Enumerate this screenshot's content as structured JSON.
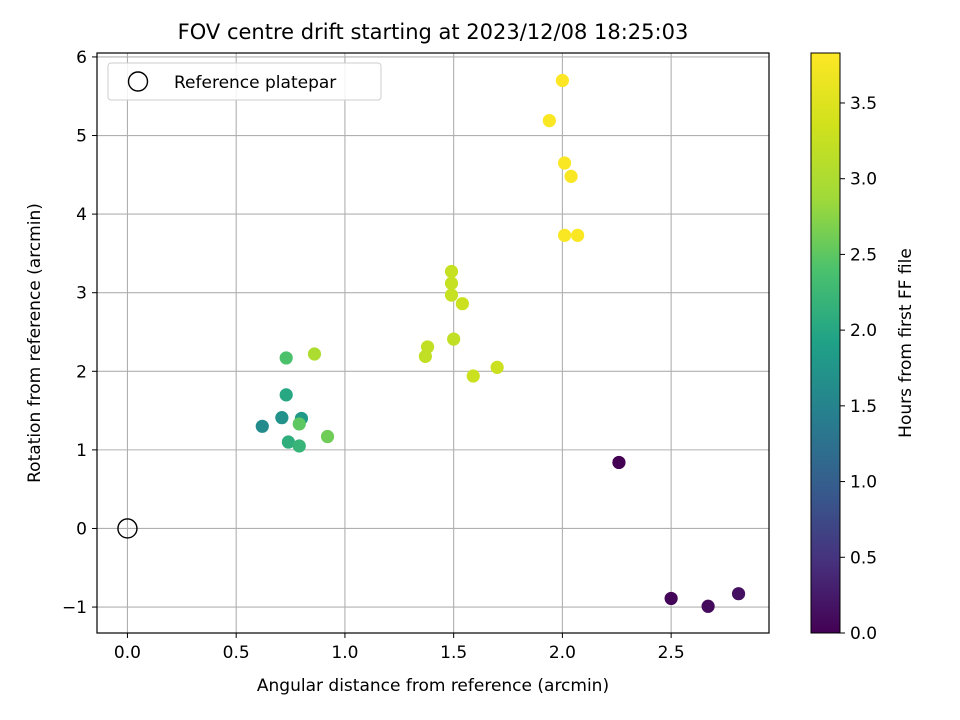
{
  "chart_data": {
    "type": "scatter",
    "title": "FOV centre drift starting at 2023/12/08 18:25:03",
    "xlabel": "Angular distance from reference (arcmin)",
    "ylabel": "Rotation from reference (arcmin)",
    "xlim": [
      -0.14,
      2.95
    ],
    "ylim": [
      -1.33,
      6.05
    ],
    "x_ticks": [
      0.0,
      0.5,
      1.0,
      1.5,
      2.0,
      2.5
    ],
    "x_tick_labels": [
      "0.0",
      "0.5",
      "1.0",
      "1.5",
      "2.0",
      "2.5"
    ],
    "y_ticks": [
      -1,
      0,
      1,
      2,
      3,
      4,
      5,
      6
    ],
    "y_tick_labels": [
      "−1",
      "0",
      "1",
      "2",
      "3",
      "4",
      "5",
      "6"
    ],
    "grid": true,
    "legend": {
      "position": "top-left",
      "entries": [
        "Reference platepar"
      ]
    },
    "reference_point": {
      "x": 0.0,
      "y": 0.0
    },
    "colorbar": {
      "label": "Hours from first FF file",
      "colormap": "viridis",
      "range": [
        0.0,
        3.83
      ],
      "ticks": [
        0.0,
        0.5,
        1.0,
        1.5,
        2.0,
        2.5,
        3.0,
        3.5
      ],
      "tick_labels": [
        "0.0",
        "0.5",
        "1.0",
        "1.5",
        "2.0",
        "2.5",
        "3.0",
        "3.5"
      ]
    },
    "points": [
      {
        "x": 2.26,
        "y": 0.84,
        "hours": 0.0
      },
      {
        "x": 2.5,
        "y": -0.89,
        "hours": 0.05
      },
      {
        "x": 2.67,
        "y": -0.99,
        "hours": 0.1
      },
      {
        "x": 2.81,
        "y": -0.83,
        "hours": 0.15
      },
      {
        "x": 0.62,
        "y": 1.3,
        "hours": 1.6
      },
      {
        "x": 0.71,
        "y": 1.41,
        "hours": 1.7
      },
      {
        "x": 0.8,
        "y": 1.4,
        "hours": 1.8
      },
      {
        "x": 0.73,
        "y": 1.7,
        "hours": 2.0
      },
      {
        "x": 0.74,
        "y": 1.1,
        "hours": 2.1
      },
      {
        "x": 0.79,
        "y": 1.05,
        "hours": 2.2
      },
      {
        "x": 0.73,
        "y": 2.17,
        "hours": 2.4
      },
      {
        "x": 0.79,
        "y": 1.33,
        "hours": 2.5
      },
      {
        "x": 0.92,
        "y": 1.17,
        "hours": 2.6
      },
      {
        "x": 0.86,
        "y": 2.22,
        "hours": 3.0
      },
      {
        "x": 1.38,
        "y": 2.31,
        "hours": 3.2
      },
      {
        "x": 1.37,
        "y": 2.19,
        "hours": 3.2
      },
      {
        "x": 1.49,
        "y": 3.27,
        "hours": 3.25
      },
      {
        "x": 1.49,
        "y": 3.12,
        "hours": 3.25
      },
      {
        "x": 1.49,
        "y": 2.97,
        "hours": 3.25
      },
      {
        "x": 1.54,
        "y": 2.86,
        "hours": 3.3
      },
      {
        "x": 1.5,
        "y": 2.41,
        "hours": 3.2
      },
      {
        "x": 1.59,
        "y": 1.94,
        "hours": 3.3
      },
      {
        "x": 1.7,
        "y": 2.05,
        "hours": 3.3
      },
      {
        "x": 2.0,
        "y": 5.7,
        "hours": 3.83
      },
      {
        "x": 1.94,
        "y": 5.19,
        "hours": 3.8
      },
      {
        "x": 2.01,
        "y": 4.65,
        "hours": 3.8
      },
      {
        "x": 2.04,
        "y": 4.48,
        "hours": 3.8
      },
      {
        "x": 2.01,
        "y": 3.73,
        "hours": 3.8
      },
      {
        "x": 2.07,
        "y": 3.73,
        "hours": 3.8
      }
    ]
  }
}
